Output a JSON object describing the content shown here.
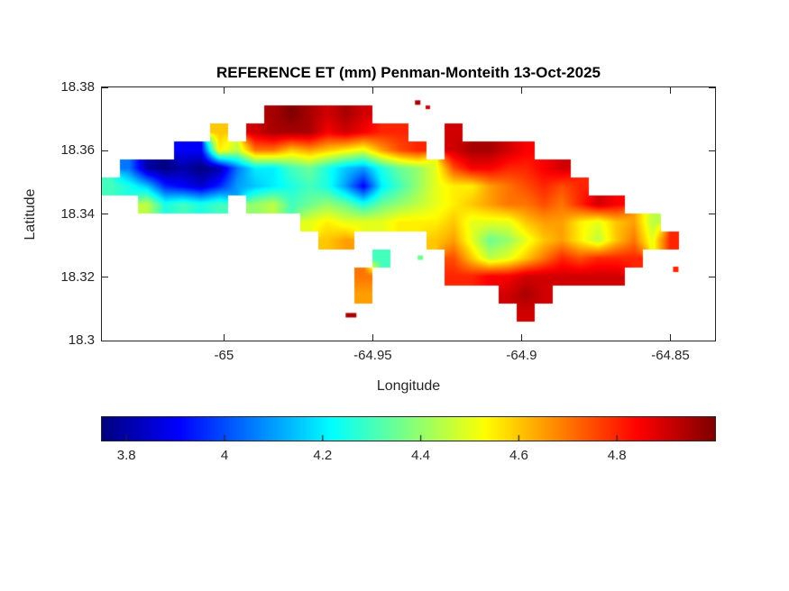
{
  "colors": {
    "axes": "#262626",
    "title_text": "#000000",
    "background": "#FFFFFF"
  },
  "chart_data": {
    "type": "heatmap",
    "subtype": "filled-contour-map",
    "title": "REFERENCE ET (mm) Penman-Monteith 13-Oct-2025",
    "xlabel": "Longitude",
    "ylabel": "Latitude",
    "units": "mm",
    "xlim": [
      -65.041,
      -64.835
    ],
    "ylim": [
      18.3,
      18.38
    ],
    "grid_lines": false,
    "xticks": {
      "values": [
        -65,
        -64.95,
        -64.9,
        -64.85
      ],
      "labels": [
        "-65",
        "-64.95",
        "-64.9",
        "-64.85"
      ]
    },
    "yticks": {
      "values": [
        18.38,
        18.36,
        18.34,
        18.32,
        18.3
      ],
      "labels": [
        "18.38",
        "18.36",
        "18.34",
        "18.32",
        "18.3"
      ]
    },
    "colormap": "jet",
    "clim": [
      3.75,
      5.0
    ],
    "colorbar": {
      "orientation": "horizontal",
      "position": "bottom",
      "ticks": [
        3.8,
        4.0,
        4.2,
        4.4,
        4.6,
        4.8
      ],
      "labels": [
        "3.8",
        "4",
        "4.2",
        "4.4",
        "4.6",
        "4.8"
      ]
    },
    "grid": {
      "comment": "Estimated reference ET (mm) on a regular lon/lat grid; null = ocean/no data. lon = lon0 + j*dlon, lat = lat0 + i*dlat.",
      "lon0": -65.0379,
      "dlon": 0.00606,
      "lat0": 18.3772,
      "dlat": -0.00569,
      "values": [
        [
          null,
          null,
          null,
          null,
          null,
          null,
          null,
          null,
          null,
          null,
          null,
          null,
          null,
          null,
          null,
          null,
          null,
          null,
          null,
          null,
          null,
          null,
          null,
          null,
          null,
          null,
          null,
          null,
          null,
          null,
          null,
          null,
          null,
          null
        ],
        [
          null,
          null,
          null,
          null,
          null,
          null,
          null,
          null,
          null,
          4.95,
          5,
          4.95,
          4.9,
          4.95,
          4.9,
          null,
          null,
          null,
          null,
          null,
          null,
          null,
          null,
          null,
          null,
          null,
          null,
          null,
          null,
          null,
          null,
          null,
          null,
          null
        ],
        [
          null,
          null,
          null,
          null,
          null,
          null,
          4.6,
          null,
          4.9,
          4.95,
          4.95,
          4.95,
          4.85,
          4.9,
          4.85,
          4.8,
          4.8,
          null,
          null,
          4.9,
          null,
          null,
          null,
          null,
          null,
          null,
          null,
          null,
          null,
          null,
          null,
          null,
          null,
          null
        ],
        [
          null,
          null,
          null,
          null,
          3.9,
          3.9,
          4.55,
          4.45,
          4.7,
          4.7,
          4.6,
          4.65,
          4.6,
          4.55,
          4.5,
          4.65,
          4.75,
          4.8,
          null,
          4.9,
          4.95,
          4.95,
          4.9,
          4.85,
          null,
          null,
          null,
          null,
          null,
          null,
          null,
          null,
          null,
          null
        ],
        [
          null,
          4.05,
          3.8,
          3.75,
          3.8,
          3.75,
          3.8,
          4.05,
          4.2,
          4.2,
          4.3,
          4.35,
          4.25,
          4.15,
          4.1,
          4.25,
          4.35,
          4.4,
          4.5,
          4.75,
          4.85,
          4.85,
          4.8,
          4.8,
          4.85,
          4.9,
          null,
          null,
          null,
          null,
          null,
          null,
          null,
          null
        ],
        [
          4.3,
          4.25,
          4.15,
          3.95,
          3.9,
          3.85,
          3.95,
          4.1,
          4.15,
          4.2,
          4.25,
          4.3,
          4.25,
          4.1,
          3.9,
          4.2,
          4.3,
          4.4,
          4.5,
          4.55,
          4.55,
          4.65,
          4.7,
          4.75,
          4.8,
          4.75,
          4.8,
          null,
          null,
          null,
          null,
          null,
          null,
          null
        ],
        [
          null,
          null,
          4.45,
          4.25,
          4.3,
          4.25,
          4.3,
          null,
          4.4,
          4.45,
          4.3,
          4.35,
          4.4,
          4.35,
          4.25,
          4.35,
          4.4,
          4.45,
          4.5,
          4.55,
          4.6,
          4.65,
          4.7,
          4.7,
          4.75,
          4.7,
          4.8,
          4.9,
          4.85,
          null,
          null,
          null,
          null,
          null
        ],
        [
          null,
          null,
          null,
          null,
          null,
          null,
          null,
          null,
          null,
          null,
          null,
          4.5,
          4.55,
          4.5,
          4.5,
          4.5,
          4.55,
          4.55,
          4.55,
          4.6,
          4.5,
          4.5,
          4.5,
          4.6,
          4.65,
          4.65,
          4.55,
          4.5,
          4.6,
          4.65,
          4.45,
          null,
          null,
          null
        ],
        [
          null,
          null,
          null,
          null,
          null,
          null,
          null,
          null,
          null,
          null,
          null,
          null,
          4.6,
          4.65,
          null,
          null,
          null,
          null,
          4.6,
          4.65,
          4.5,
          4.35,
          4.4,
          4.5,
          4.6,
          4.65,
          4.55,
          4.45,
          4.6,
          4.7,
          4.5,
          4.8,
          null,
          null
        ],
        [
          null,
          null,
          null,
          null,
          null,
          null,
          null,
          null,
          null,
          null,
          null,
          null,
          null,
          null,
          null,
          4.3,
          null,
          null,
          null,
          4.75,
          4.6,
          4.45,
          4.5,
          4.6,
          4.7,
          4.8,
          4.75,
          4.8,
          4.8,
          4.8,
          null,
          null,
          null,
          null
        ],
        [
          null,
          null,
          null,
          null,
          null,
          null,
          null,
          null,
          null,
          null,
          null,
          null,
          null,
          null,
          4.7,
          null,
          null,
          null,
          null,
          4.8,
          4.8,
          4.85,
          4.85,
          4.9,
          4.9,
          4.9,
          4.9,
          4.9,
          4.9,
          null,
          null,
          null,
          null,
          null
        ],
        [
          null,
          null,
          null,
          null,
          null,
          null,
          null,
          null,
          null,
          null,
          null,
          null,
          null,
          null,
          4.65,
          null,
          null,
          null,
          null,
          null,
          null,
          null,
          4.9,
          4.95,
          4.9,
          null,
          null,
          null,
          null,
          null,
          null,
          null,
          null,
          null
        ],
        [
          null,
          null,
          null,
          null,
          null,
          null,
          null,
          null,
          null,
          null,
          null,
          null,
          null,
          null,
          null,
          null,
          null,
          null,
          null,
          null,
          null,
          null,
          null,
          4.9,
          null,
          null,
          null,
          null,
          null,
          null,
          null,
          null,
          null,
          null
        ],
        [
          null,
          null,
          null,
          null,
          null,
          null,
          null,
          null,
          null,
          null,
          null,
          null,
          null,
          null,
          null,
          null,
          null,
          null,
          null,
          null,
          null,
          null,
          null,
          null,
          null,
          null,
          null,
          null,
          null,
          null,
          null,
          null,
          null,
          null
        ]
      ]
    },
    "islets": [
      {
        "lon": -64.9349,
        "lat": 18.3752,
        "w": 6,
        "h": 5,
        "value": 4.95
      },
      {
        "lon": -64.9315,
        "lat": 18.3737,
        "w": 5,
        "h": 4,
        "value": 4.9
      },
      {
        "lon": -64.9573,
        "lat": 18.308,
        "w": 12,
        "h": 5,
        "value": 4.95
      },
      {
        "lon": -64.8482,
        "lat": 18.3225,
        "w": 6,
        "h": 6,
        "value": 4.8
      },
      {
        "lon": -64.934,
        "lat": 18.3262,
        "w": 6,
        "h": 5,
        "value": 4.35
      }
    ]
  }
}
